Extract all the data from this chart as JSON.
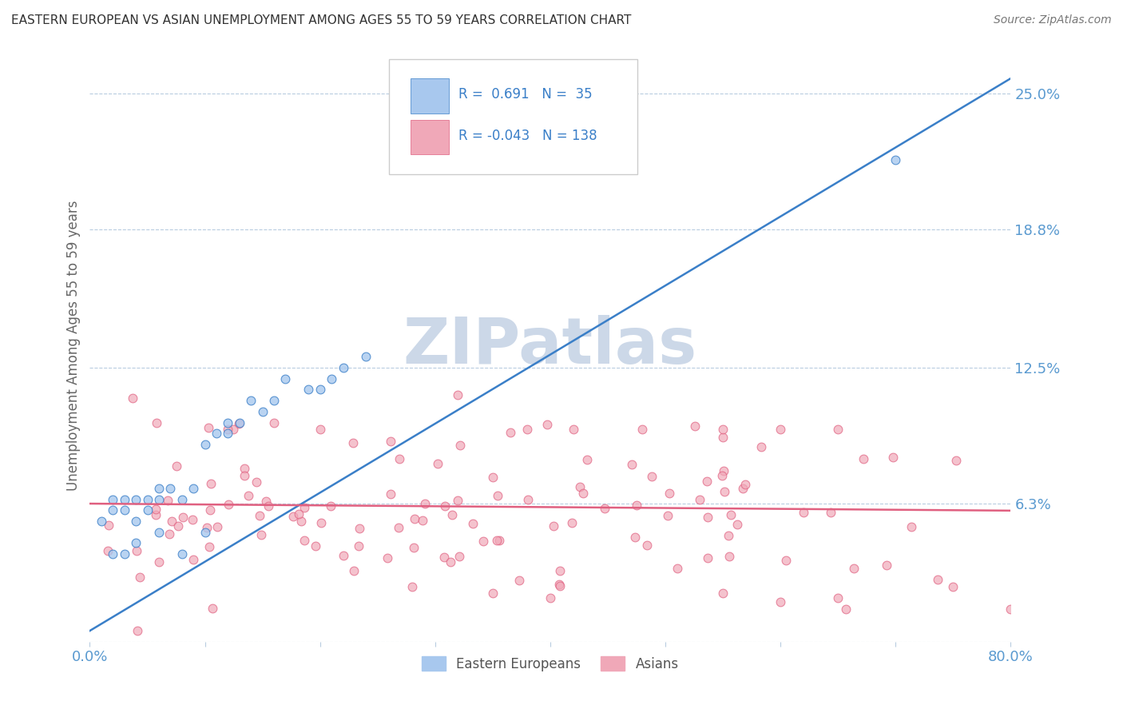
{
  "title": "EASTERN EUROPEAN VS ASIAN UNEMPLOYMENT AMONG AGES 55 TO 59 YEARS CORRELATION CHART",
  "source": "Source: ZipAtlas.com",
  "ylabel": "Unemployment Among Ages 55 to 59 years",
  "xlim": [
    0.0,
    0.8
  ],
  "ylim": [
    0.0,
    0.27
  ],
  "xticks": [
    0.0,
    0.1,
    0.2,
    0.3,
    0.4,
    0.5,
    0.6,
    0.7,
    0.8
  ],
  "xticklabels": [
    "0.0%",
    "",
    "",
    "",
    "",
    "",
    "",
    "",
    "80.0%"
  ],
  "ytick_positions": [
    0.0,
    0.063,
    0.125,
    0.188,
    0.25
  ],
  "ytick_labels": [
    "",
    "6.3%",
    "12.5%",
    "18.8%",
    "25.0%"
  ],
  "blue_R": 0.691,
  "blue_N": 35,
  "pink_R": -0.043,
  "pink_N": 138,
  "blue_color": "#a8c8ee",
  "pink_color": "#f0a8b8",
  "blue_line_color": "#3a7fc8",
  "pink_line_color": "#e06080",
  "background_color": "#ffffff",
  "grid_color": "#b8cce0",
  "title_color": "#333333",
  "source_color": "#777777",
  "label_color": "#5a9ad0",
  "watermark_color": "#ccd8e8",
  "legend_text_color": "#3a7fc8",
  "blue_slope": 0.315,
  "blue_intercept": 0.005,
  "pink_slope": -0.004,
  "pink_intercept": 0.063
}
